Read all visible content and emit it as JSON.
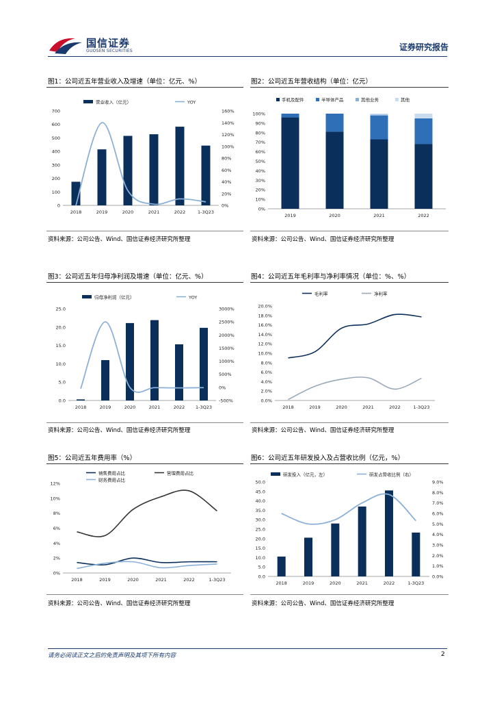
{
  "header": {
    "logo_cn": "国信证券",
    "logo_en": "GUOSEN SECURITIES",
    "report_type": "证券研究报告"
  },
  "figures": [
    {
      "title": "图1：公司近五年营业收入及增速（单位：亿元、%）",
      "source": "资料来源：公司公告、Wind、国信证券经济研究所整理"
    },
    {
      "title": "图2：公司近五年营收结构（单位：亿元）",
      "source": "资料来源：公司公告、Wind、国信证券经济研究所整理"
    },
    {
      "title": "图3：公司近五年归母净利润及增速（单位：亿元、%）",
      "source": "资料来源：公司公告、Wind、国信证券经济研究所整理"
    },
    {
      "title": "图4：公司近五年毛利率与净利率情况（单位：%、%）",
      "source": "资料来源：公司公告、Wind、国信证券经济研究所整理"
    },
    {
      "title": "图5：公司近五年费用率（%）",
      "source": "资料来源：公司公告、Wind、国信证券经济研究所整理"
    },
    {
      "title": "图6：公司近五年研发投入及占营收比例（亿元，%）",
      "source": "资料来源：公司公告、Wind、国信证券经济研究所整理"
    }
  ],
  "footer": {
    "disclaimer": "请务必阅读正文之后的免责声明及其项下所有内容",
    "page": "2"
  },
  "colors": {
    "navy": "#0b2f5b",
    "mid": "#2e6fb7",
    "light": "#8ab0d8",
    "pale": "#c9dcef",
    "grey": "#9aa9b8",
    "dark": "#333333"
  },
  "chart_data": [
    {
      "type": "bar",
      "categories": [
        "2018",
        "2019",
        "2020",
        "2021",
        "2022",
        "1-3Q23"
      ],
      "series": [
        {
          "name": "营业收入（亿元）",
          "values": [
            175,
            415,
            515,
            527,
            583,
            443
          ],
          "axis": "left",
          "type": "bar"
        },
        {
          "name": "YOY",
          "values": [
            0,
            140,
            25,
            2,
            11,
            6
          ],
          "axis": "right",
          "type": "line"
        }
      ],
      "left_ticks": [
        "0",
        "100",
        "200",
        "300",
        "400",
        "500",
        "600",
        "700"
      ],
      "right_ticks": [
        "0%",
        "20%",
        "40%",
        "60%",
        "80%",
        "100%",
        "120%",
        "140%",
        "160%"
      ],
      "ylim_left": [
        0,
        700
      ],
      "ylim_right": [
        0,
        160
      ]
    },
    {
      "type": "bar",
      "stacked": true,
      "categories": [
        "2019",
        "2020",
        "2021",
        "2022"
      ],
      "series": [
        {
          "name": "手机及配件",
          "values": [
            96,
            81,
            73,
            68
          ]
        },
        {
          "name": "半导体产品",
          "values": [
            4,
            19,
            25,
            27
          ]
        },
        {
          "name": "其他业务",
          "values": [
            0,
            0,
            1,
            0
          ]
        },
        {
          "name": "其他",
          "values": [
            0,
            0,
            1,
            5
          ]
        }
      ],
      "left_ticks": [
        "0%",
        "10%",
        "20%",
        "30%",
        "40%",
        "50%",
        "60%",
        "70%",
        "80%",
        "90%",
        "100%"
      ],
      "ylim_left": [
        0,
        100
      ]
    },
    {
      "type": "bar",
      "categories": [
        "2018",
        "2019",
        "2020",
        "2021",
        "2022",
        "1-3Q23"
      ],
      "series": [
        {
          "name": "归母净利润（亿元）",
          "values": [
            0.3,
            11.0,
            21.1,
            21.9,
            15.3,
            19.8
          ],
          "axis": "left",
          "type": "bar"
        },
        {
          "name": "YOY",
          "values": [
            -50,
            2500,
            0,
            -10,
            -20,
            -10
          ],
          "axis": "right",
          "type": "line"
        }
      ],
      "left_ticks": [
        "0.0",
        "5.0",
        "10.0",
        "15.0",
        "20.0",
        "25.0"
      ],
      "right_ticks": [
        "-500%",
        "0%",
        "500%",
        "1000%",
        "1500%",
        "2000%",
        "2500%",
        "3000%"
      ],
      "ylim_left": [
        0,
        25
      ],
      "ylim_right": [
        -500,
        3000
      ]
    },
    {
      "type": "line",
      "categories": [
        "2018",
        "2019",
        "2020",
        "2021",
        "2022",
        "1-3Q23"
      ],
      "series": [
        {
          "name": "毛利率",
          "values": [
            9.0,
            10.3,
            15.3,
            16.2,
            18.2,
            17.7
          ]
        },
        {
          "name": "净利率",
          "values": [
            0.2,
            3.0,
            4.5,
            4.8,
            2.4,
            4.7
          ]
        }
      ],
      "left_ticks": [
        "0.0%",
        "2.0%",
        "4.0%",
        "6.0%",
        "8.0%",
        "10.0%",
        "12.0%",
        "14.0%",
        "16.0%",
        "18.0%",
        "20.0%"
      ],
      "ylim_left": [
        0,
        20
      ]
    },
    {
      "type": "line",
      "categories": [
        "2018",
        "2019",
        "2020",
        "2021",
        "2022",
        "1-3Q23"
      ],
      "series": [
        {
          "name": "销售费用占比",
          "values": [
            1.4,
            1.1,
            2.0,
            1.4,
            1.5,
            1.5
          ]
        },
        {
          "name": "管理费用占比",
          "values": [
            5.5,
            5.0,
            8.5,
            10.2,
            11.0,
            8.3
          ]
        },
        {
          "name": "财务费用占比",
          "values": [
            0.6,
            1.3,
            1.5,
            0.7,
            1.0,
            1.2
          ]
        }
      ],
      "left_ticks": [
        "0%",
        "2%",
        "4%",
        "6%",
        "8%",
        "10%",
        "12%"
      ],
      "ylim_left": [
        0,
        12
      ]
    },
    {
      "type": "bar",
      "categories": [
        "2018",
        "2019",
        "2020",
        "2021",
        "2022",
        "1-3Q23"
      ],
      "series": [
        {
          "name": "研发投入（亿元，左）",
          "values": [
            10.5,
            20.5,
            28.0,
            37.0,
            45.5,
            23.2
          ],
          "axis": "left",
          "type": "bar"
        },
        {
          "name": "研发占营收比例（右）",
          "values": [
            6.0,
            5.0,
            5.4,
            7.0,
            7.8,
            5.3
          ],
          "axis": "right",
          "type": "line"
        }
      ],
      "left_ticks": [
        "0.0",
        "5.0",
        "10.0",
        "15.0",
        "20.0",
        "25.0",
        "30.0",
        "35.0",
        "40.0",
        "45.0",
        "50.0"
      ],
      "right_ticks": [
        "0.0%",
        "1.0%",
        "2.0%",
        "3.0%",
        "4.0%",
        "5.0%",
        "6.0%",
        "7.0%",
        "8.0%",
        "9.0%"
      ],
      "ylim_left": [
        0,
        50
      ],
      "ylim_right": [
        0,
        9
      ]
    }
  ]
}
